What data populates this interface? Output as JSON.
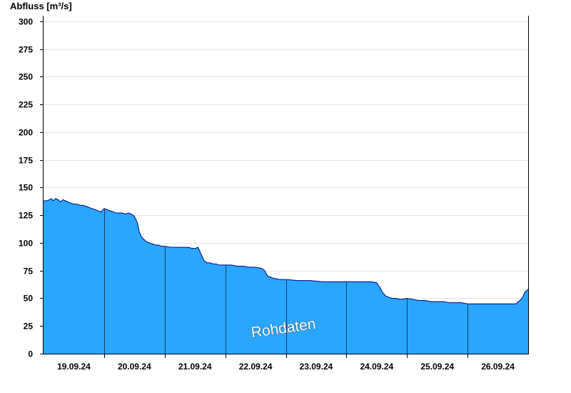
{
  "chart_data": {
    "type": "area",
    "ylabel": "Abfluss [m³/s]",
    "ylim": [
      0,
      305
    ],
    "yticks": [
      0,
      25,
      50,
      75,
      100,
      125,
      150,
      175,
      200,
      225,
      250,
      275,
      300
    ],
    "xlim": [
      0,
      8
    ],
    "day_labels": [
      "19.09.24",
      "20.09.24",
      "21.09.24",
      "22.09.24",
      "23.09.24",
      "24.09.24",
      "25.09.24",
      "26.09.24"
    ],
    "grid": true,
    "watermark": "Rohdaten",
    "colors": {
      "fill": "#29a6ff",
      "line": "#00007a",
      "grid": "#e6e6e6"
    },
    "series": [
      {
        "x": [
          0,
          0.05,
          0.1,
          0.13,
          0.16,
          0.2,
          0.24,
          0.28,
          0.32,
          0.36,
          0.4,
          0.45,
          0.5,
          0.55,
          0.6,
          0.65,
          0.7,
          0.75,
          0.8,
          0.85,
          0.9,
          0.95,
          1.0,
          1.05,
          1.1,
          1.15,
          1.2,
          1.25,
          1.3,
          1.35,
          1.4,
          1.45,
          1.5,
          1.55,
          1.58,
          1.62,
          1.66,
          1.7,
          1.75,
          1.8,
          1.85,
          1.9,
          1.95,
          2.0,
          2.1,
          2.2,
          2.3,
          2.4,
          2.45,
          2.5,
          2.55,
          2.6,
          2.65,
          2.7,
          2.75,
          2.8,
          2.85,
          2.9,
          3.0,
          3.1,
          3.2,
          3.3,
          3.4,
          3.5,
          3.6,
          3.65,
          3.7,
          3.75,
          3.8,
          3.9,
          4.0,
          4.2,
          4.4,
          4.6,
          4.8,
          5.0,
          5.2,
          5.4,
          5.5,
          5.55,
          5.6,
          5.65,
          5.7,
          5.75,
          5.8,
          5.9,
          6.0,
          6.1,
          6.2,
          6.3,
          6.4,
          6.5,
          6.6,
          6.7,
          6.8,
          6.9,
          7.0,
          7.2,
          7.4,
          7.6,
          7.8,
          7.9,
          7.95,
          8.0
        ],
        "y": [
          138,
          138,
          139,
          140,
          138,
          140,
          139,
          137,
          139,
          138,
          137,
          136,
          135,
          135,
          134,
          134,
          133,
          132,
          131,
          130,
          129,
          128,
          131,
          130,
          129,
          128,
          127,
          127,
          127,
          126,
          127,
          126,
          124,
          118,
          110,
          105,
          103,
          101,
          100,
          99,
          98,
          98,
          97,
          97,
          96,
          96,
          96,
          96,
          95,
          95,
          96,
          90,
          84,
          82,
          82,
          81,
          81,
          80,
          80,
          80,
          79,
          79,
          78,
          78,
          77,
          75,
          70,
          69,
          68,
          67,
          67,
          66,
          66,
          65,
          65,
          65,
          65,
          65,
          64,
          60,
          55,
          52,
          51,
          50,
          50,
          49,
          50,
          49,
          48,
          48,
          47,
          47,
          47,
          46,
          46,
          46,
          45,
          45,
          45,
          45,
          45,
          50,
          56,
          58
        ]
      }
    ]
  }
}
